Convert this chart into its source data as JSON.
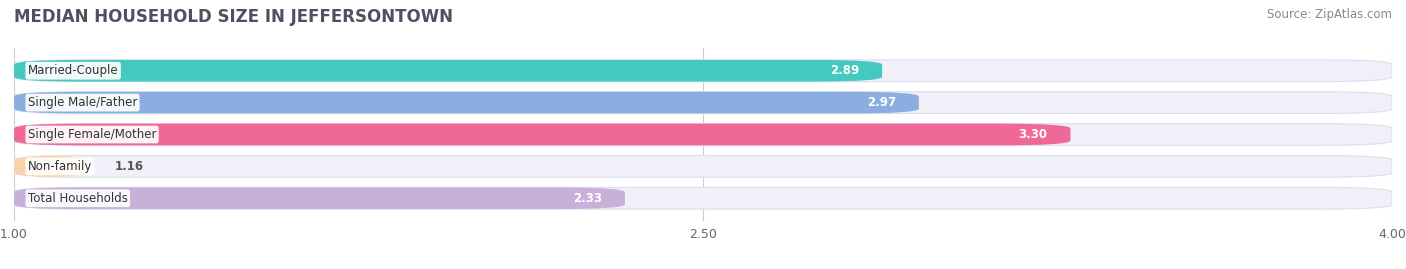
{
  "title": "MEDIAN HOUSEHOLD SIZE IN JEFFERSONTOWN",
  "source": "Source: ZipAtlas.com",
  "categories": [
    "Married-Couple",
    "Single Male/Father",
    "Single Female/Mother",
    "Non-family",
    "Total Households"
  ],
  "values": [
    2.89,
    2.97,
    3.3,
    1.16,
    2.33
  ],
  "bar_colors": [
    "#44c8c0",
    "#8aaee0",
    "#f06898",
    "#f8d4a8",
    "#c8b0d8"
  ],
  "bar_edge_colors": [
    "#44c8c0",
    "#8aaee0",
    "#f06898",
    "#f8d4a8",
    "#c8b0d8"
  ],
  "xlim": [
    1.0,
    4.0
  ],
  "xticks": [
    1.0,
    2.5,
    4.0
  ],
  "xticklabels": [
    "1.00",
    "2.50",
    "4.00"
  ],
  "background_color": "#ffffff",
  "bar_bg_color": "#f0f0f5",
  "title_fontsize": 12,
  "source_fontsize": 8.5,
  "label_fontsize": 8.5,
  "value_fontsize": 8.5,
  "bar_height": 0.68,
  "bar_spacing": 1.0,
  "figsize": [
    14.06,
    2.69
  ]
}
